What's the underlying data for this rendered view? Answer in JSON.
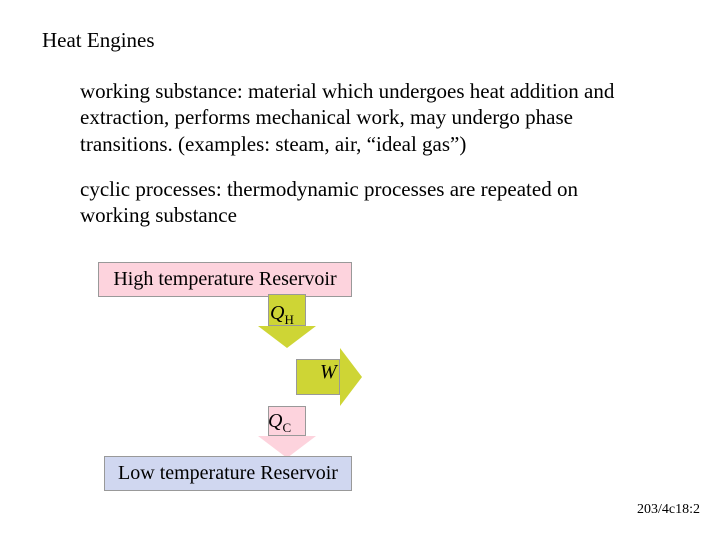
{
  "title": "Heat Engines",
  "para1": "working substance: material which undergoes heat addition and extraction, performs mechanical work, may undergo phase transitions.  (examples: steam, air, “ideal gas”)",
  "para2": "cyclic processes: thermodynamic processes are repeated on working substance",
  "diagram": {
    "hot_reservoir": "High temperature Reservoir",
    "cold_reservoir": "Low temperature Reservoir",
    "qh_symbol": "Q",
    "qh_sub": "H",
    "qc_symbol": "Q",
    "qc_sub": "C",
    "w_symbol": "W",
    "colors": {
      "hot_bg": "#fdd3dd",
      "cold_bg": "#d0d7f0",
      "arrow_main": "#ced535",
      "qc_arrow": "#fdd3dd",
      "border": "#999999"
    }
  },
  "footer": "203/4c18:2"
}
